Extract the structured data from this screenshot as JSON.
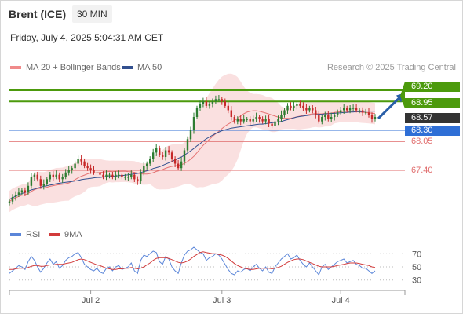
{
  "header": {
    "title": "Brent (ICE)",
    "interval": "30 MIN"
  },
  "datetime": "Friday, July 4, 2025 5:04:31 AM CET",
  "legend": {
    "bollinger": "MA 20 + Bollinger Bands",
    "ma50": "MA 50"
  },
  "credit": "Research © 2025 Trading Central",
  "colors": {
    "resistance": "#4c9a0c",
    "support": "#e06b6b",
    "pivot": "#2f6fd6",
    "current": "#333333",
    "band": "#f5c7c7",
    "ma50": "#32508f",
    "up_candle": "#2e7d32",
    "down_candle": "#c62828",
    "arrow": "#2a5fa8",
    "rsi": "#5b86d9",
    "rsi_ma": "#d23b3b"
  },
  "levels": [
    {
      "name": "resistance-2",
      "value": 69.2,
      "label": "69.20",
      "kind": "resistance"
    },
    {
      "name": "resistance-1",
      "value": 68.95,
      "label": "68.95",
      "kind": "resistance"
    },
    {
      "name": "current-price",
      "value": 68.57,
      "label": "68.57",
      "kind": "current"
    },
    {
      "name": "pivot",
      "value": 68.3,
      "label": "68.30",
      "kind": "pivot"
    },
    {
      "name": "support-1",
      "value": 68.05,
      "label": "68.05",
      "kind": "support"
    },
    {
      "name": "support-2",
      "value": 67.4,
      "label": "67.40",
      "kind": "support"
    }
  ],
  "rsi_legend": {
    "rsi": "RSI",
    "ma": "9MA"
  },
  "rsi_axis": {
    "ticks": [
      "70",
      "50",
      "30"
    ],
    "range": [
      20,
      80
    ]
  },
  "x_axis": {
    "labels": [
      "Jul 2",
      "Jul 3",
      "Jul 4"
    ]
  },
  "chart_data": {
    "type": "candlestick",
    "title": "Brent (ICE)",
    "ylim": [
      66.5,
      69.5
    ],
    "x_categories": [
      "Jul 2",
      "Jul 3",
      "Jul 4"
    ],
    "x_label_index": [
      26,
      68,
      106
    ],
    "closes": [
      66.7,
      66.8,
      66.85,
      66.9,
      66.95,
      66.9,
      67.05,
      67.25,
      67.3,
      67.2,
      67.05,
      67.1,
      67.2,
      67.3,
      67.25,
      67.3,
      67.2,
      67.25,
      67.35,
      67.4,
      67.45,
      67.55,
      67.65,
      67.6,
      67.5,
      67.45,
      67.4,
      67.35,
      67.35,
      67.3,
      67.25,
      67.3,
      67.3,
      67.25,
      67.3,
      67.3,
      67.25,
      67.25,
      67.25,
      67.3,
      67.2,
      67.15,
      67.35,
      67.5,
      67.55,
      67.65,
      67.8,
      67.9,
      67.75,
      67.7,
      67.85,
      67.8,
      67.65,
      67.55,
      67.45,
      67.6,
      67.85,
      68.1,
      68.3,
      68.6,
      68.8,
      68.9,
      68.95,
      68.85,
      68.9,
      68.95,
      69.0,
      69.0,
      68.95,
      68.85,
      68.75,
      68.6,
      68.5,
      68.55,
      68.5,
      68.55,
      68.55,
      68.5,
      68.55,
      68.6,
      68.55,
      68.5,
      68.55,
      68.45,
      68.4,
      68.5,
      68.55,
      68.65,
      68.75,
      68.85,
      68.8,
      68.85,
      68.9,
      68.85,
      68.8,
      68.75,
      68.8,
      68.75,
      68.65,
      68.5,
      68.6,
      68.65,
      68.55,
      68.6,
      68.65,
      68.7,
      68.75,
      68.8,
      68.75,
      68.8,
      68.8,
      68.75,
      68.75,
      68.7,
      68.7,
      68.65,
      68.55,
      68.6
    ],
    "ma50": [
      66.75,
      66.78,
      66.82,
      66.85,
      66.88,
      66.9,
      66.93,
      66.96,
      66.98,
      67.0,
      67.02,
      67.04,
      67.05,
      67.07,
      67.08,
      67.1,
      67.11,
      67.12,
      67.13,
      67.14,
      67.15,
      67.16,
      67.17,
      67.19,
      67.2,
      67.21,
      67.22,
      67.23,
      67.24,
      67.24,
      67.25,
      67.26,
      67.26,
      67.27,
      67.27,
      67.28,
      67.28,
      67.29,
      67.3,
      67.31,
      67.32,
      67.33,
      67.35,
      67.37,
      67.39,
      67.41,
      67.44,
      67.46,
      67.48,
      67.51,
      67.54,
      67.57,
      67.6,
      67.63,
      67.67,
      67.7,
      67.74,
      67.79,
      67.84,
      67.89,
      67.95,
      68.0,
      68.06,
      68.11,
      68.15,
      68.19,
      68.23,
      68.26,
      68.29,
      68.31,
      68.33,
      68.35,
      68.36,
      68.37,
      68.38,
      68.39,
      68.4,
      68.41,
      68.42,
      68.43,
      68.44,
      68.44,
      68.45,
      68.46,
      68.47,
      68.48,
      68.49,
      68.5,
      68.52,
      68.54,
      68.56,
      68.58,
      68.6,
      68.61,
      68.62,
      68.63,
      68.64,
      68.65,
      68.65,
      68.66,
      68.66,
      68.67,
      68.67,
      68.68,
      68.68,
      68.69,
      68.69,
      68.7,
      68.7,
      68.71,
      68.71,
      68.72,
      68.72,
      68.72,
      68.73,
      68.73,
      68.73,
      68.73
    ],
    "levels": [
      69.2,
      68.95,
      68.57,
      68.3,
      68.05,
      67.4
    ],
    "rsi": [
      40,
      44,
      48,
      52,
      50,
      46,
      58,
      66,
      60,
      50,
      42,
      48,
      56,
      62,
      54,
      58,
      48,
      52,
      60,
      64,
      66,
      70,
      72,
      64,
      54,
      50,
      46,
      44,
      48,
      42,
      40,
      48,
      50,
      44,
      50,
      52,
      46,
      48,
      50,
      56,
      44,
      40,
      60,
      68,
      66,
      70,
      74,
      72,
      58,
      54,
      66,
      62,
      50,
      44,
      40,
      56,
      68,
      74,
      76,
      80,
      76,
      72,
      70,
      60,
      64,
      66,
      70,
      68,
      62,
      54,
      46,
      40,
      38,
      44,
      42,
      46,
      48,
      44,
      50,
      54,
      48,
      44,
      50,
      42,
      40,
      50,
      56,
      62,
      66,
      70,
      62,
      64,
      68,
      60,
      54,
      50,
      56,
      50,
      44,
      38,
      50,
      54,
      46,
      50,
      54,
      58,
      60,
      62,
      56,
      58,
      60,
      54,
      52,
      48,
      48,
      44,
      40,
      44
    ],
    "rsi_ma": [
      46,
      46,
      47,
      48,
      48,
      48,
      49,
      51,
      52,
      52,
      51,
      51,
      52,
      53,
      53,
      54,
      54,
      54,
      55,
      56,
      57,
      59,
      61,
      62,
      61,
      59,
      57,
      55,
      53,
      52,
      50,
      48,
      47,
      46,
      46,
      47,
      47,
      48,
      48,
      49,
      48,
      47,
      48,
      50,
      53,
      56,
      60,
      63,
      64,
      64,
      64,
      63,
      61,
      59,
      57,
      56,
      57,
      59,
      62,
      66,
      69,
      72,
      73,
      72,
      71,
      70,
      70,
      69,
      68,
      66,
      63,
      59,
      55,
      52,
      50,
      48,
      47,
      46,
      46,
      47,
      48,
      48,
      48,
      48,
      47,
      48,
      49,
      51,
      54,
      57,
      59,
      61,
      62,
      62,
      61,
      59,
      57,
      55,
      53,
      51,
      50,
      50,
      50,
      50,
      51,
      52,
      53,
      54,
      55,
      56,
      56,
      56,
      55,
      54,
      53,
      52,
      50,
      49
    ]
  }
}
